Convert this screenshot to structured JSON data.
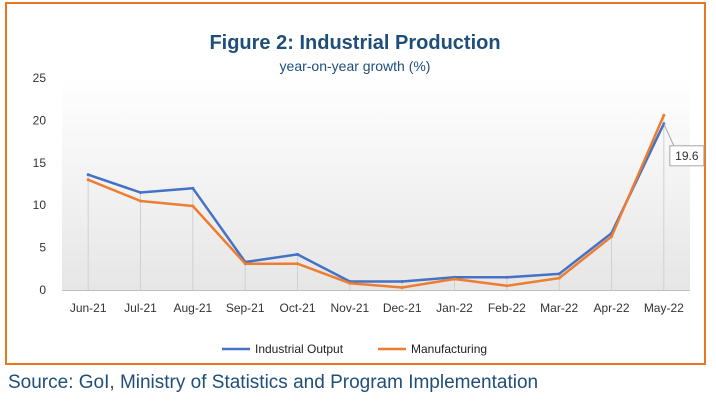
{
  "chart_data": {
    "type": "line",
    "title": "Figure 2: Industrial Production",
    "subtitle": "year-on-year growth (%)",
    "xlabel": "",
    "ylabel": "",
    "categories": [
      "Jun-21",
      "Jul-21",
      "Aug-21",
      "Sep-21",
      "Oct-21",
      "Nov-21",
      "Dec-21",
      "Jan-22",
      "Feb-22",
      "Mar-22",
      "Apr-22",
      "May-22"
    ],
    "ylim": [
      0,
      25
    ],
    "yticks": [
      "0",
      "5",
      "10",
      "15",
      "20",
      "25"
    ],
    "series": [
      {
        "name": "Industrial Output",
        "color": "#4472c4",
        "values": [
          13.6,
          11.5,
          12.0,
          3.3,
          4.2,
          1.0,
          1.0,
          1.5,
          1.5,
          1.9,
          6.7,
          19.6
        ]
      },
      {
        "name": "Manufacturing",
        "color": "#ed7d31",
        "values": [
          13.0,
          10.5,
          9.9,
          3.1,
          3.1,
          0.8,
          0.3,
          1.3,
          0.5,
          1.4,
          6.3,
          20.6
        ]
      }
    ],
    "annotation": {
      "label": "19.6",
      "series": "Industrial Output",
      "category": "May-22"
    },
    "grid": false,
    "legend": "bottom",
    "background_gradient": true,
    "border_color": "#e87722"
  },
  "source_text": "Source: GoI, Ministry of Statistics and Program Implementation"
}
